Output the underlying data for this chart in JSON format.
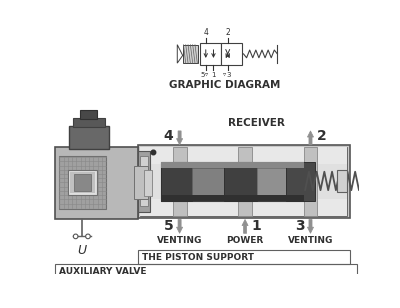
{
  "bg_color": "#ffffff",
  "body_fill": "#c8c8c8",
  "body_fill2": "#d8d8d8",
  "inner_fill": "#e8e8e8",
  "spool_dark": "#484848",
  "spool_mid": "#888888",
  "spool_light": "#b0b0b0",
  "port_block": "#b8b8b8",
  "solenoid_fill": "#a0a0a0",
  "solenoid_mesh": "#909090",
  "spring_color": "#505050",
  "arrow_fill": "#909090",
  "text_color": "#303030",
  "line_color": "#505050",
  "title": "GRAPHIC DIAGRAM",
  "label_receiver": "RECEIVER",
  "label_venting1": "VENTING",
  "label_power": "POWER",
  "label_venting2": "VENTING",
  "label_piston": "THE PISTON SUPPORT",
  "label_aux": "AUXILIARY VALVE",
  "label_u": "U"
}
